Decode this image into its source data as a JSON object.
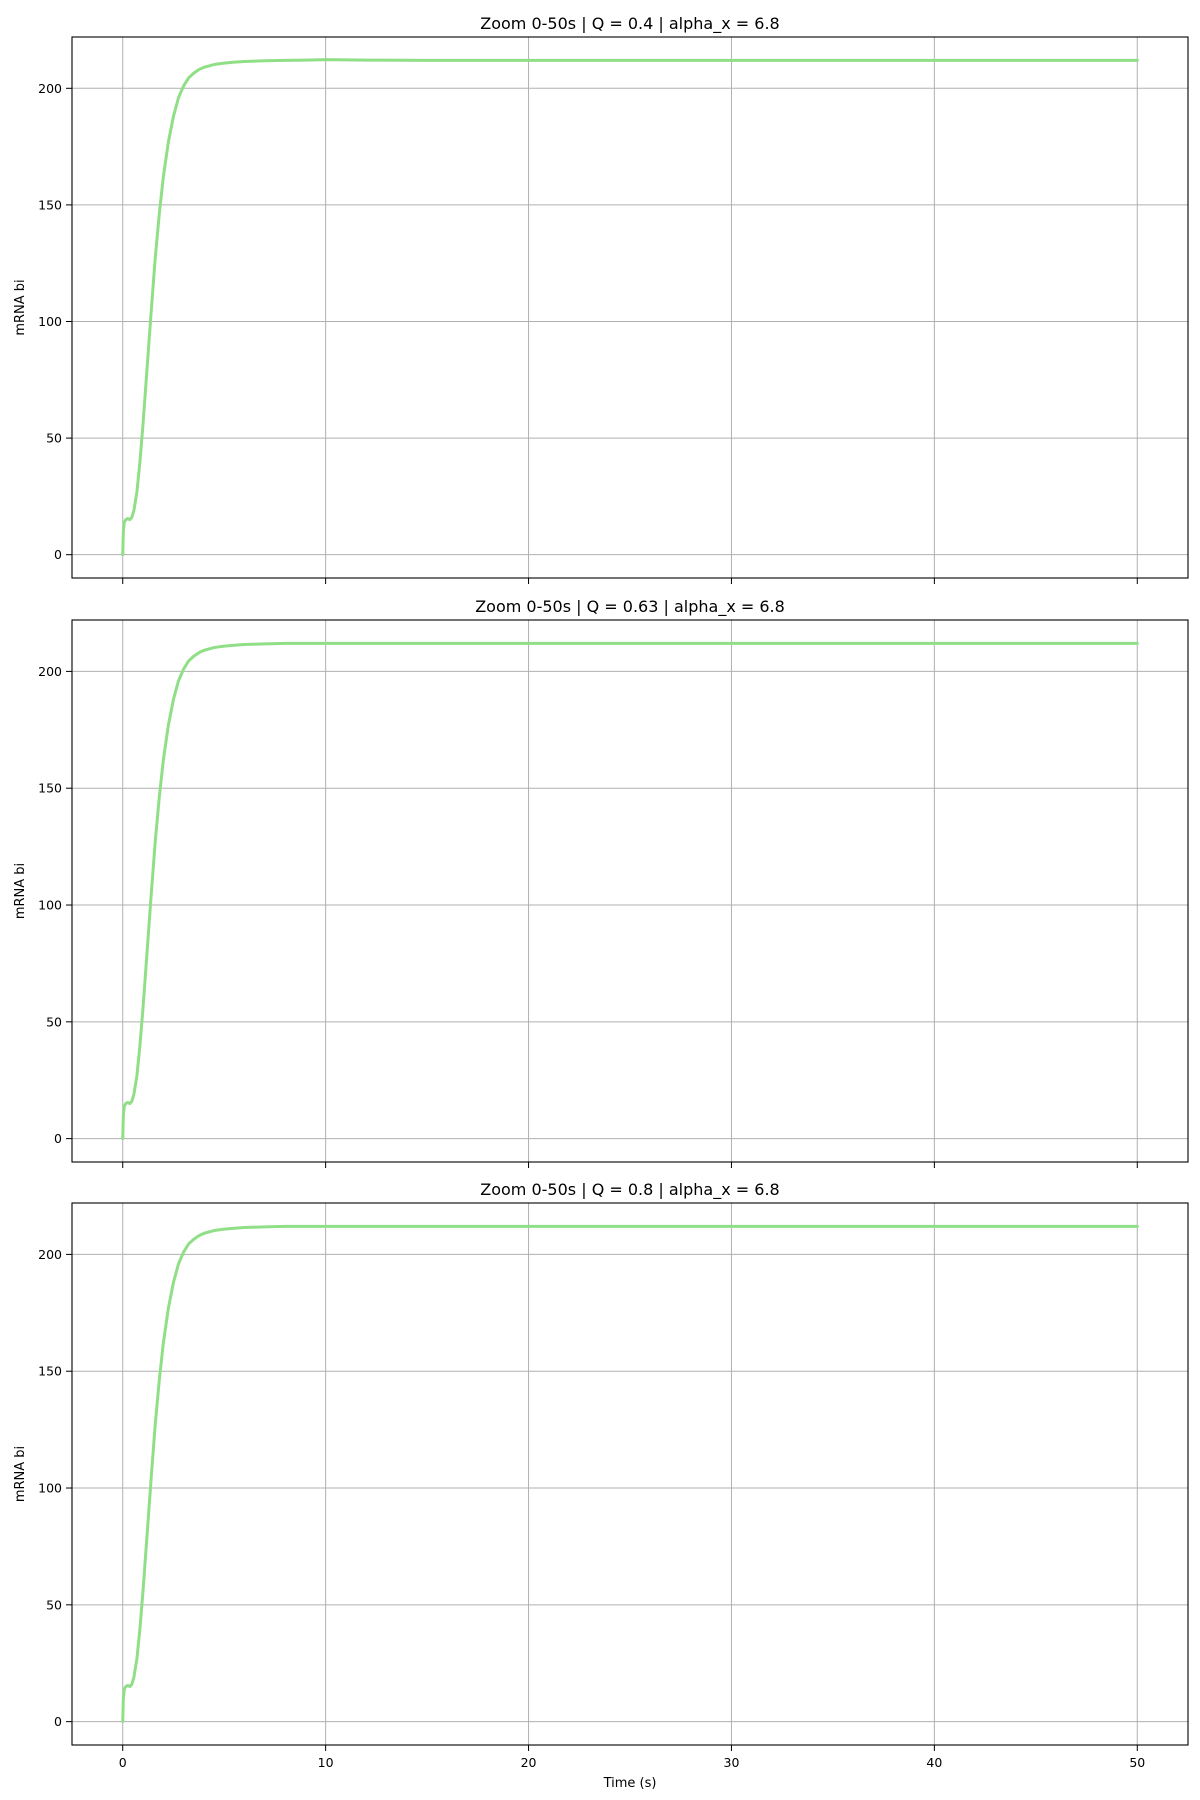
{
  "chart_data": [
    {
      "type": "line",
      "title": "Zoom 0-50s | Q = 0.4 | alpha_x = 6.8",
      "ylabel": "mRNA bi",
      "xlabel": "",
      "xlim": [
        -2.5,
        52.5
      ],
      "ylim": [
        -10,
        222
      ],
      "xticks": [
        0,
        10,
        20,
        30,
        40,
        50
      ],
      "yticks": [
        0,
        50,
        100,
        150,
        200
      ],
      "show_xticklabels": false,
      "grid": true,
      "line_color": "#90df87",
      "series": [
        {
          "x": [
            0,
            0.03,
            0.08,
            0.15,
            0.25,
            0.35,
            0.45,
            0.55,
            0.7,
            0.85,
            1.0,
            1.2,
            1.4,
            1.6,
            1.8,
            2.0,
            2.25,
            2.5,
            2.75,
            3.0,
            3.25,
            3.5,
            3.75,
            4.0,
            4.5,
            5.0,
            5.5,
            6.0,
            7.0,
            8.0,
            9.0,
            10.0,
            12.0,
            15.0,
            20.0,
            25.0,
            30.0,
            35.0,
            40.0,
            45.0,
            50.0
          ],
          "y": [
            0,
            10,
            14,
            15,
            15.5,
            15,
            16,
            19,
            27,
            40,
            56,
            80,
            104,
            127,
            146,
            162,
            177,
            188,
            196,
            201,
            204.5,
            206.5,
            208,
            209,
            210.2,
            210.8,
            211.2,
            211.5,
            211.8,
            212,
            212.1,
            212.3,
            212.1,
            212,
            212,
            212,
            212,
            212,
            212,
            212,
            212
          ]
        }
      ]
    },
    {
      "type": "line",
      "title": "Zoom 0-50s | Q = 0.63 | alpha_x = 6.8",
      "ylabel": "mRNA bi",
      "xlabel": "",
      "xlim": [
        -2.5,
        52.5
      ],
      "ylim": [
        -10,
        222
      ],
      "xticks": [
        0,
        10,
        20,
        30,
        40,
        50
      ],
      "yticks": [
        0,
        50,
        100,
        150,
        200
      ],
      "show_xticklabels": false,
      "grid": true,
      "line_color": "#90df87",
      "series": [
        {
          "x": [
            0,
            0.03,
            0.08,
            0.15,
            0.25,
            0.35,
            0.45,
            0.55,
            0.7,
            0.85,
            1.0,
            1.2,
            1.4,
            1.6,
            1.8,
            2.0,
            2.25,
            2.5,
            2.75,
            3.0,
            3.25,
            3.5,
            3.75,
            4.0,
            4.5,
            5.0,
            5.5,
            6.0,
            7.0,
            8.0,
            9.0,
            10.0,
            12.0,
            15.0,
            20.0,
            25.0,
            30.0,
            35.0,
            40.0,
            45.0,
            50.0
          ],
          "y": [
            0,
            10,
            14,
            15,
            15.5,
            15,
            16,
            19,
            27,
            40,
            56,
            80,
            104,
            127,
            146,
            162,
            177,
            188,
            196,
            201,
            204.5,
            206.5,
            208,
            209,
            210.2,
            210.8,
            211.2,
            211.5,
            211.8,
            212,
            212,
            212,
            212,
            212,
            212,
            212,
            212,
            212,
            212,
            212,
            212
          ]
        }
      ]
    },
    {
      "type": "line",
      "title": "Zoom 0-50s | Q = 0.8 | alpha_x = 6.8",
      "ylabel": "mRNA bi",
      "xlabel": "Time (s)",
      "xlim": [
        -2.5,
        52.5
      ],
      "ylim": [
        -10,
        222
      ],
      "xticks": [
        0,
        10,
        20,
        30,
        40,
        50
      ],
      "yticks": [
        0,
        50,
        100,
        150,
        200
      ],
      "show_xticklabels": true,
      "grid": true,
      "line_color": "#90df87",
      "series": [
        {
          "x": [
            0,
            0.03,
            0.08,
            0.15,
            0.25,
            0.35,
            0.45,
            0.55,
            0.7,
            0.85,
            1.0,
            1.2,
            1.4,
            1.6,
            1.8,
            2.0,
            2.25,
            2.5,
            2.75,
            3.0,
            3.25,
            3.5,
            3.75,
            4.0,
            4.5,
            5.0,
            5.5,
            6.0,
            7.0,
            8.0,
            9.0,
            10.0,
            12.0,
            15.0,
            20.0,
            25.0,
            30.0,
            35.0,
            40.0,
            45.0,
            50.0
          ],
          "y": [
            0,
            10,
            14,
            15,
            15.5,
            15,
            16,
            19,
            27,
            40,
            56,
            80,
            104,
            127,
            146,
            162,
            177,
            188,
            196,
            201,
            204.5,
            206.5,
            208,
            209,
            210.2,
            210.8,
            211.2,
            211.5,
            211.8,
            212,
            212,
            212,
            212,
            212,
            212,
            212,
            212,
            212,
            212,
            212,
            212
          ]
        }
      ]
    }
  ]
}
